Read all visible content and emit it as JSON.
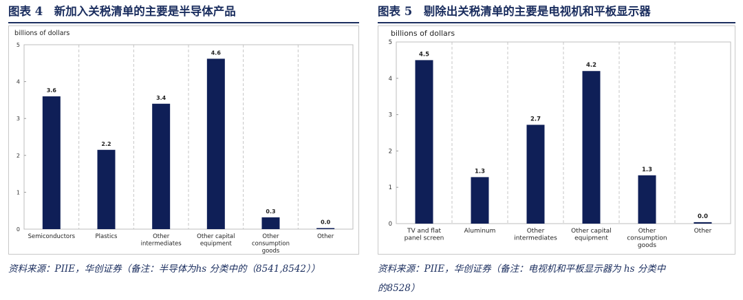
{
  "panels": [
    {
      "title": "图表 4　新加入关税清单的主要是半导体产品",
      "source": "资料来源：PIIE，华创证券（备注：半导体为hs 分类中的（8541,8542））",
      "source_line2": "",
      "chart_data": {
        "type": "bar",
        "title": "",
        "ylabel": "billions of dollars",
        "xlabel": "",
        "ylim": [
          0,
          5
        ],
        "yticks": [
          "0",
          "1",
          "2",
          "3",
          "4",
          "5"
        ],
        "categories": [
          "Semiconductors",
          "Plastics",
          "Other\nintermediates",
          "Other capital\nequipment",
          "Other\nconsumption\ngoods",
          "Other"
        ],
        "values": [
          3.6,
          2.15,
          3.4,
          4.62,
          0.32,
          0.01
        ],
        "labels": [
          "3.6",
          "2.2",
          "3.4",
          "4.6",
          "0.3",
          "0.0"
        ],
        "grid": true,
        "bar_color": "#0f1f57"
      }
    },
    {
      "title": "图表 5　剔除出关税清单的主要是电视机和平板显示器",
      "source": "资料来源：PIIE，华创证券（备注：电视机和平板显示器为 hs 分类中",
      "source_line2": "的8528）",
      "chart_data": {
        "type": "bar",
        "title": "",
        "ylabel": "billions of dollars",
        "xlabel": "",
        "ylim": [
          0,
          5
        ],
        "yticks": [
          "0",
          "1",
          "2",
          "3",
          "4",
          "5"
        ],
        "categories": [
          "TV and flat\npanel screen",
          "Aluminum",
          "Other\nintermediates",
          "Other capital\nequipment",
          "Other\nconsumption\ngoods",
          "Other"
        ],
        "values": [
          4.5,
          1.28,
          2.72,
          4.2,
          1.33,
          0.04
        ],
        "labels": [
          "4.5",
          "1.3",
          "2.7",
          "4.2",
          "1.3",
          "0.0"
        ],
        "grid": true,
        "bar_color": "#0f1f57"
      }
    }
  ]
}
